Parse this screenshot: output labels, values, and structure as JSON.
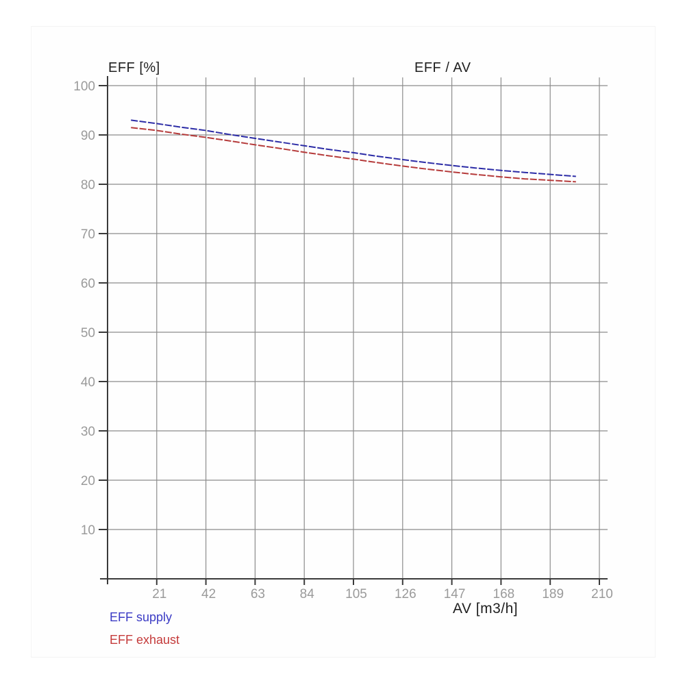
{
  "labels": {
    "title": "EFF / AV",
    "y_axis_title": "EFF [%]",
    "x_axis_title": "AV [m3/h]"
  },
  "legend": {
    "items": [
      {
        "label": "EFF supply",
        "color": "#3a3ac4"
      },
      {
        "label": "EFF exhaust",
        "color": "#c43a3a"
      }
    ]
  },
  "colors": {
    "background": "#ffffff",
    "grid_line": "#8c8c8c",
    "axis_line": "#3a3a3a",
    "tick_label": "#9a9a9a",
    "title_text": "#1f1f1f",
    "supply_line": "#2b2ba6",
    "exhaust_line": "#b53a3a"
  },
  "chart_data": {
    "type": "line",
    "title": "EFF / AV",
    "xlabel": "AV [m3/h]",
    "ylabel": "EFF [%]",
    "xlim": [
      0,
      210
    ],
    "ylim": [
      0,
      100
    ],
    "grid": true,
    "legend_position": "bottom-left",
    "x_ticks": [
      21,
      42,
      63,
      84,
      105,
      126,
      147,
      168,
      189,
      210
    ],
    "y_ticks": [
      10,
      20,
      30,
      40,
      50,
      60,
      70,
      80,
      90,
      100
    ],
    "x": [
      10,
      21,
      31,
      42,
      52,
      63,
      73,
      84,
      94,
      105,
      115,
      126,
      136,
      147,
      157,
      168,
      178,
      189,
      200
    ],
    "series": [
      {
        "name": "EFF supply",
        "color": "#2b2ba6",
        "values": [
          93.0,
          92.3,
          91.6,
          90.9,
          90.1,
          89.3,
          88.6,
          87.8,
          87.1,
          86.4,
          85.7,
          85.0,
          84.4,
          83.8,
          83.3,
          82.8,
          82.4,
          82.0,
          81.6
        ]
      },
      {
        "name": "EFF exhaust",
        "color": "#b53a3a",
        "values": [
          91.5,
          90.9,
          90.2,
          89.5,
          88.8,
          88.0,
          87.3,
          86.5,
          85.8,
          85.1,
          84.4,
          83.7,
          83.1,
          82.5,
          82.0,
          81.5,
          81.1,
          80.8,
          80.5
        ]
      }
    ]
  }
}
